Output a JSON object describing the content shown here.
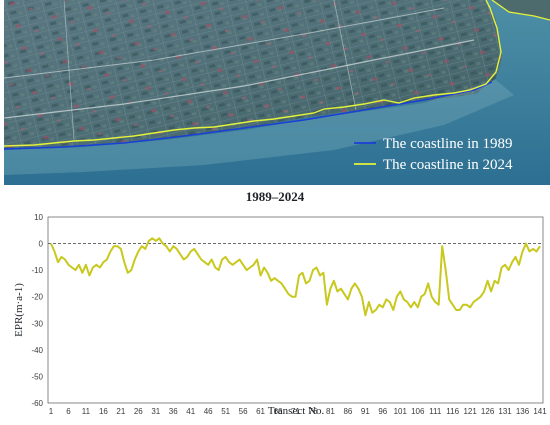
{
  "legend": {
    "items": [
      {
        "label": "The coastline in 1989",
        "color": "#1a3fd6"
      },
      {
        "label": "The coastline in 2024",
        "color": "#e3f23c"
      }
    ]
  },
  "chart_data": {
    "type": "line",
    "title": "1989–2024",
    "xlabel": "Transect No.",
    "ylabel": "EPR(m·a-1)",
    "xlim": [
      1,
      141
    ],
    "ylim": [
      -60,
      10
    ],
    "yticks": [
      10,
      0,
      -10,
      -20,
      -30,
      -40,
      -50,
      -60
    ],
    "xticks": [
      1,
      6,
      11,
      16,
      21,
      26,
      31,
      36,
      41,
      46,
      51,
      56,
      61,
      66,
      71,
      76,
      81,
      86,
      91,
      96,
      101,
      106,
      111,
      116,
      121,
      126,
      131,
      136,
      141
    ],
    "reference_line": 0,
    "grid": false,
    "series": [
      {
        "color": "#c8c81e",
        "x": [
          1,
          2,
          3,
          4,
          5,
          6,
          7,
          8,
          9,
          10,
          11,
          12,
          13,
          14,
          15,
          16,
          17,
          18,
          19,
          20,
          21,
          22,
          23,
          24,
          25,
          26,
          27,
          28,
          29,
          30,
          31,
          32,
          33,
          34,
          35,
          36,
          37,
          38,
          39,
          40,
          41,
          42,
          43,
          44,
          45,
          46,
          47,
          48,
          49,
          50,
          51,
          52,
          53,
          54,
          55,
          56,
          57,
          58,
          59,
          60,
          61,
          62,
          63,
          64,
          65,
          66,
          67,
          68,
          69,
          70,
          71,
          72,
          73,
          74,
          75,
          76,
          77,
          78,
          79,
          80,
          81,
          82,
          83,
          84,
          85,
          86,
          87,
          88,
          89,
          90,
          91,
          92,
          93,
          94,
          95,
          96,
          97,
          98,
          99,
          100,
          101,
          102,
          103,
          104,
          105,
          106,
          107,
          108,
          109,
          110,
          111,
          112,
          113,
          114,
          115,
          116,
          117,
          118,
          119,
          120,
          121,
          122,
          123,
          124,
          125,
          126,
          127,
          128,
          129,
          130,
          131,
          132,
          133,
          134,
          135,
          136,
          137,
          138,
          139,
          140,
          141
        ],
        "values": [
          0,
          -3,
          -7,
          -5,
          -6,
          -8,
          -9,
          -10,
          -8,
          -11,
          -8,
          -12,
          -9,
          -8,
          -9,
          -7,
          -6,
          -3,
          -1,
          -1,
          -2,
          -7,
          -11,
          -10,
          -6,
          -3,
          -1,
          -2,
          1,
          2,
          1,
          2,
          0,
          -1,
          -3,
          -1,
          -2,
          -4,
          -6,
          -5,
          -3,
          -2,
          -4,
          -6,
          -7,
          -8,
          -6,
          -9,
          -10,
          -6,
          -5,
          -7,
          -8,
          -7,
          -6,
          -8,
          -10,
          -9,
          -8,
          -6,
          -12,
          -9,
          -11,
          -14,
          -13,
          -14,
          -15,
          -17,
          -19,
          -20,
          -20,
          -12,
          -11,
          -15,
          -14,
          -10,
          -9,
          -12,
          -11,
          -23,
          -17,
          -14,
          -18,
          -17,
          -19,
          -21,
          -17,
          -15,
          -17,
          -20,
          -27,
          -22,
          -26,
          -25,
          -23,
          -24,
          -21,
          -22,
          -25,
          -20,
          -18,
          -21,
          -22,
          -24,
          -22,
          -24,
          -20,
          -19,
          -15,
          -20,
          -22,
          -23,
          -1,
          -10,
          -21,
          -23,
          -25,
          -25,
          -23,
          -23,
          -24,
          -22,
          -21,
          -20,
          -18,
          -14,
          -18,
          -14,
          -15,
          -9,
          -8,
          -10,
          -7,
          -5,
          -8,
          -3,
          0,
          -3,
          -2,
          -3,
          -1
        ]
      }
    ]
  }
}
